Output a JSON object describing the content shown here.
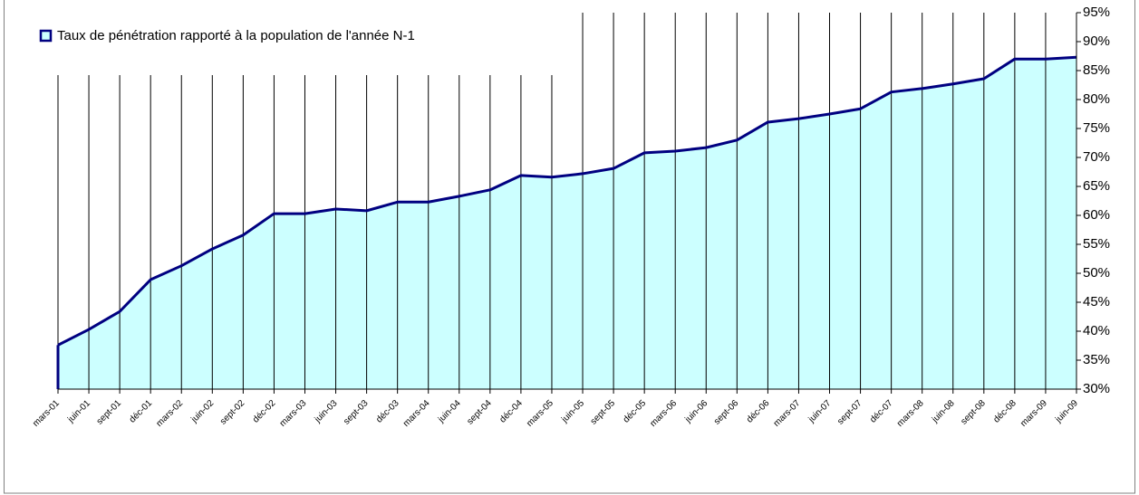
{
  "chart_data": {
    "type": "area",
    "categories": [
      "mars-01",
      "juin-01",
      "sept-01",
      "déc-01",
      "mars-02",
      "juin-02",
      "sept-02",
      "déc-02",
      "mars-03",
      "juin-03",
      "sept-03",
      "déc-03",
      "mars-04",
      "juin-04",
      "sept-04",
      "déc-04",
      "mars-05",
      "juin-05",
      "sept-05",
      "déc-05",
      "mars-06",
      "juin-06",
      "sept-06",
      "déc-06",
      "mars-07",
      "juin-07",
      "sept-07",
      "déc-07",
      "mars-08",
      "juin-08",
      "sept-08",
      "déc-08",
      "mars-09",
      "juin-09"
    ],
    "series": [
      {
        "name": "Taux de pénétration rapporté à la population de l'année N-1",
        "color": "#000080",
        "fill": "#ccffff",
        "values": [
          37.6,
          40.3,
          43.4,
          48.9,
          51.3,
          54.2,
          56.6,
          60.3,
          60.3,
          61.1,
          60.8,
          62.3,
          62.3,
          63.3,
          64.4,
          66.9,
          66.6,
          67.2,
          68.1,
          70.8,
          71.1,
          71.7,
          73.0,
          76.1,
          76.7,
          77.5,
          78.4,
          81.3,
          81.9,
          82.7,
          83.6,
          87.0,
          87.0,
          87.3
        ]
      }
    ],
    "ylim": [
      30,
      95
    ],
    "yticks": [
      {
        "value": 30,
        "label": "30%"
      },
      {
        "value": 35,
        "label": "35%"
      },
      {
        "value": 40,
        "label": "40%"
      },
      {
        "value": 45,
        "label": "45%"
      },
      {
        "value": 50,
        "label": "50%"
      },
      {
        "value": 55,
        "label": "55%"
      },
      {
        "value": 60,
        "label": "60%"
      },
      {
        "value": 65,
        "label": "65%"
      },
      {
        "value": 70,
        "label": "70%"
      },
      {
        "value": 75,
        "label": "75%"
      },
      {
        "value": 80,
        "label": "80%"
      },
      {
        "value": 85,
        "label": "85%"
      },
      {
        "value": 90,
        "label": "90%"
      },
      {
        "value": 95,
        "label": "95%"
      }
    ],
    "x_grid": true,
    "legend": "top-left"
  }
}
